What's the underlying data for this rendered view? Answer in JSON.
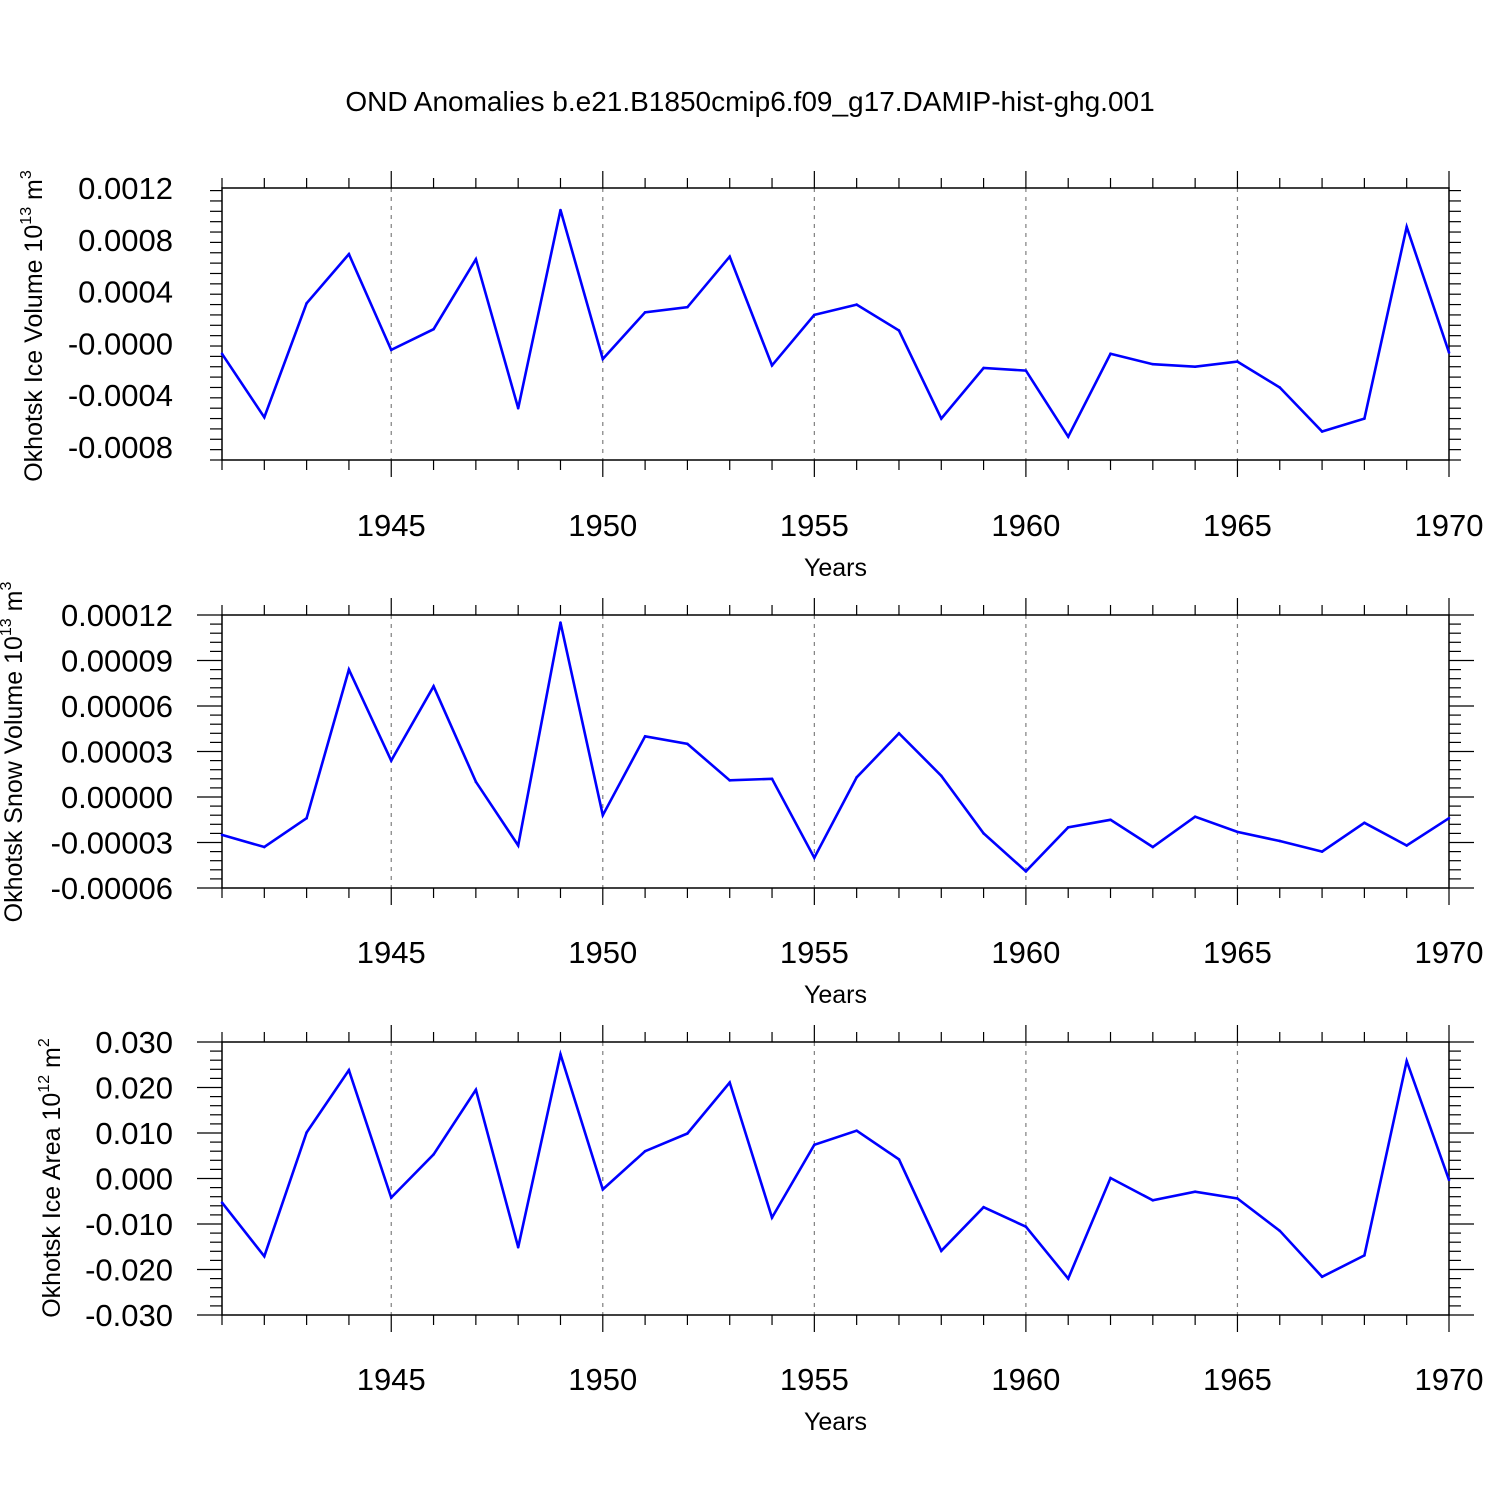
{
  "figure_title": "OND Anomalies b.e21.B1850cmip6.f09_g17.DAMIP-hist-ghg.001",
  "colors": {
    "line": "#0000ff",
    "axis": "#000000",
    "grid": "#7f7f7f"
  },
  "chart_data": [
    {
      "type": "line",
      "ylabel_main": "Okhotsk Ice Volume 10",
      "ylabel_exp": "13",
      "ylabel_unit": " m",
      "ylabel_unit_exp": "3",
      "xlabel": "Years",
      "xlim": [
        1941,
        1970
      ],
      "ylim": [
        -0.0009,
        0.0012
      ],
      "xticks": [
        1945,
        1950,
        1955,
        1960,
        1965,
        1970
      ],
      "xtick_labels": [
        "1945",
        "1950",
        "1955",
        "1960",
        "1965",
        "1970"
      ],
      "yticks": [
        0.0012,
        0.0008,
        0.0004,
        0.0,
        -0.0004,
        -0.0008
      ],
      "ytick_labels": [
        "0.0012",
        "0.0008",
        "0.0004",
        "-0.0000",
        "-0.0004",
        "-0.0008"
      ],
      "x": [
        1941,
        1942,
        1943,
        1944,
        1945,
        1946,
        1947,
        1948,
        1949,
        1950,
        1951,
        1952,
        1953,
        1954,
        1955,
        1956,
        1957,
        1958,
        1959,
        1960,
        1961,
        1962,
        1963,
        1964,
        1965,
        1966,
        1967,
        1968,
        1969,
        1970
      ],
      "values": [
        -8e-05,
        -0.00057,
        0.00031,
        0.00069,
        -5e-05,
        0.00011,
        0.00065,
        -0.0005,
        0.00103,
        -0.00012,
        0.00024,
        0.00028,
        0.00067,
        -0.00017,
        0.00022,
        0.0003,
        0.0001,
        -0.00058,
        -0.00019,
        -0.00021,
        -0.00072,
        -8e-05,
        -0.00016,
        -0.00018,
        -0.00014,
        -0.00034,
        -0.00068,
        -0.00058,
        0.0009,
        -7e-05
      ]
    },
    {
      "type": "line",
      "ylabel_main": "Okhotsk Snow Volume 10",
      "ylabel_exp": "13",
      "ylabel_unit": " m",
      "ylabel_unit_exp": "3",
      "xlabel": "Years",
      "xlim": [
        1941,
        1970
      ],
      "ylim": [
        -6e-05,
        0.00012
      ],
      "xticks": [
        1945,
        1950,
        1955,
        1960,
        1965,
        1970
      ],
      "xtick_labels": [
        "1945",
        "1950",
        "1955",
        "1960",
        "1965",
        "1970"
      ],
      "yticks": [
        0.00012,
        9e-05,
        6e-05,
        3e-05,
        0.0,
        -3e-05,
        -6e-05
      ],
      "ytick_labels": [
        "0.00012",
        "0.00009",
        "0.00006",
        "0.00003",
        "0.00000",
        "-0.00003",
        "-0.00006"
      ],
      "x": [
        1941,
        1942,
        1943,
        1944,
        1945,
        1946,
        1947,
        1948,
        1949,
        1950,
        1951,
        1952,
        1953,
        1954,
        1955,
        1956,
        1957,
        1958,
        1959,
        1960,
        1961,
        1962,
        1963,
        1964,
        1965,
        1966,
        1967,
        1968,
        1969,
        1970
      ],
      "values": [
        -2.5e-05,
        -3.3e-05,
        -1.4e-05,
        8.4e-05,
        2.4e-05,
        7.3e-05,
        1e-05,
        -3.2e-05,
        0.000115,
        -1.2e-05,
        4e-05,
        3.5e-05,
        1.1e-05,
        1.2e-05,
        -4e-05,
        1.3e-05,
        4.2e-05,
        1.4e-05,
        -2.4e-05,
        -4.9e-05,
        -2e-05,
        -1.5e-05,
        -3.3e-05,
        -1.3e-05,
        -2.3e-05,
        -2.9e-05,
        -3.6e-05,
        -1.7e-05,
        -3.2e-05,
        -1.4e-05
      ]
    },
    {
      "type": "line",
      "ylabel_main": "Okhotsk Ice Area 10",
      "ylabel_exp": "12",
      "ylabel_unit": " m",
      "ylabel_unit_exp": "2",
      "xlabel": "Years",
      "xlim": [
        1941,
        1970
      ],
      "ylim": [
        -0.03,
        0.03
      ],
      "xticks": [
        1945,
        1950,
        1955,
        1960,
        1965,
        1970
      ],
      "xtick_labels": [
        "1945",
        "1950",
        "1955",
        "1960",
        "1965",
        "1970"
      ],
      "yticks": [
        0.03,
        0.02,
        0.01,
        0.0,
        -0.01,
        -0.02,
        -0.03
      ],
      "ytick_labels": [
        "0.030",
        "0.020",
        "0.010",
        "0.000",
        "-0.010",
        "-0.020",
        "-0.030"
      ],
      "x": [
        1941,
        1942,
        1943,
        1944,
        1945,
        1946,
        1947,
        1948,
        1949,
        1950,
        1951,
        1952,
        1953,
        1954,
        1955,
        1956,
        1957,
        1958,
        1959,
        1960,
        1961,
        1962,
        1963,
        1964,
        1965,
        1966,
        1967,
        1968,
        1969,
        1970
      ],
      "values": [
        -0.0053,
        -0.0171,
        0.0101,
        0.0238,
        -0.0042,
        0.0053,
        0.0195,
        -0.0151,
        0.0273,
        -0.0024,
        0.006,
        0.0099,
        0.0211,
        -0.0086,
        0.0074,
        0.0105,
        0.0042,
        -0.0159,
        -0.0063,
        -0.0106,
        -0.022,
        0.0001,
        -0.0048,
        -0.0029,
        -0.0044,
        -0.0115,
        -0.0216,
        -0.0169,
        0.0258,
        -0.0003
      ]
    }
  ]
}
